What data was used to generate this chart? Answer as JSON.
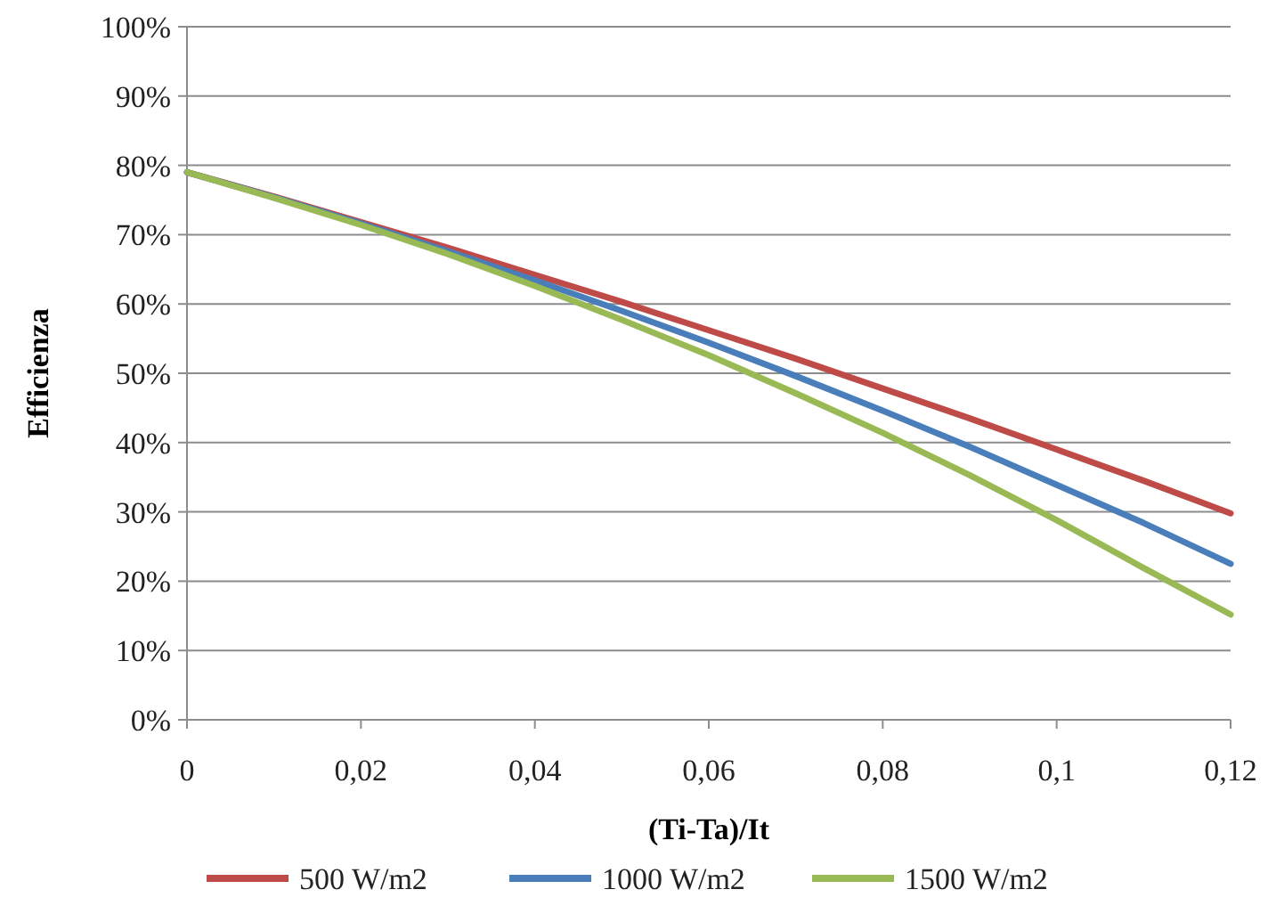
{
  "chart_data": {
    "type": "line",
    "xlabel": "(Ti-Ta)/It",
    "ylabel": "Efficienza",
    "x": [
      0,
      0.01,
      0.02,
      0.03,
      0.04,
      0.05,
      0.06,
      0.07,
      0.08,
      0.09,
      0.1,
      0.11,
      0.12
    ],
    "series": [
      {
        "name": "500 W/m2",
        "color": "#be4b48",
        "values": [
          79,
          75.5,
          71.8,
          68.1,
          64.2,
          60.3,
          56.2,
          52.1,
          47.8,
          43.5,
          39.0,
          34.5,
          29.8
        ]
      },
      {
        "name": "1000 W/m2",
        "color": "#4a7ebb",
        "values": [
          79,
          75.4,
          71.6,
          67.6,
          63.4,
          59.0,
          54.4,
          49.6,
          44.6,
          39.4,
          33.9,
          28.4,
          22.5
        ]
      },
      {
        "name": "1500 W/m2",
        "color": "#98b954",
        "values": [
          79,
          75.3,
          71.4,
          67.2,
          62.6,
          57.7,
          52.6,
          47.1,
          41.4,
          35.3,
          28.8,
          21.9,
          15.2
        ]
      }
    ],
    "xlim": [
      0,
      0.12
    ],
    "ylim": [
      0,
      100
    ],
    "xticks": [
      0,
      {
        "value": 0.02,
        "label": "0,02"
      },
      {
        "value": 0.04,
        "label": "0,04"
      },
      {
        "value": 0.06,
        "label": "0,06"
      },
      {
        "value": 0.08,
        "label": "0,08"
      },
      {
        "value": 0.1,
        "label": "0,1"
      },
      {
        "value": 0.12,
        "label": "0,12"
      }
    ],
    "yticks": [
      {
        "value": 0,
        "label": "0%"
      },
      {
        "value": 10,
        "label": "10%"
      },
      {
        "value": 20,
        "label": "20%"
      },
      {
        "value": 30,
        "label": "30%"
      },
      {
        "value": 40,
        "label": "40%"
      },
      {
        "value": 50,
        "label": "50%"
      },
      {
        "value": 60,
        "label": "60%"
      },
      {
        "value": 70,
        "label": "70%"
      },
      {
        "value": 80,
        "label": "80%"
      },
      {
        "value": 90,
        "label": "90%"
      },
      {
        "value": 100,
        "label": "100%"
      }
    ],
    "grid": "y",
    "legend": "bottom",
    "marker": "none",
    "line_style": "solid"
  }
}
